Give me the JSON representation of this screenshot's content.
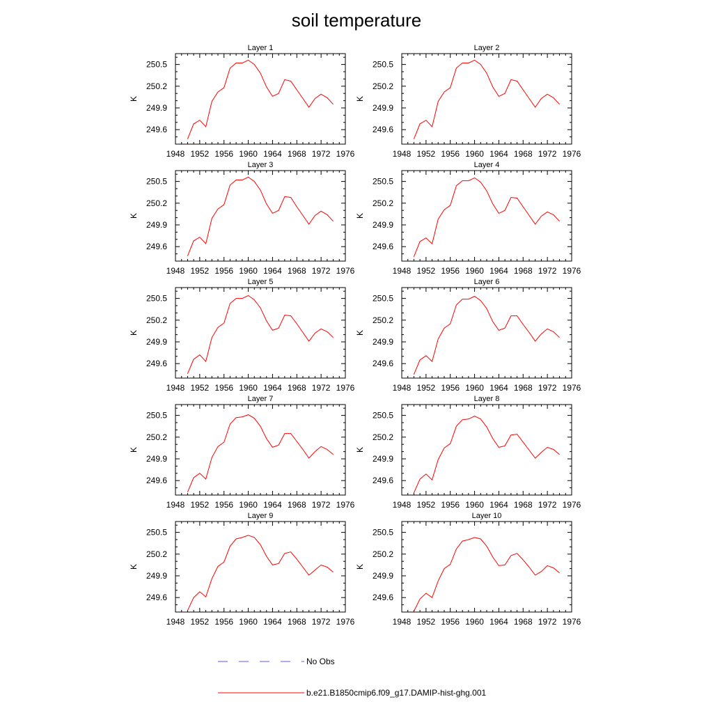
{
  "title": "soil temperature",
  "legend": {
    "items": [
      {
        "label": "No Obs",
        "color": "#5a5aff",
        "style": "dashed"
      },
      {
        "label": "b.e21.B1850cmip6.f09_g17.DAMIP-hist-ghg.001",
        "color": "#ff0000",
        "style": "solid"
      }
    ]
  },
  "chart_data": {
    "type": "line",
    "ylabel": "K",
    "xlim": [
      1948,
      1976
    ],
    "ylim": [
      249.4,
      250.65
    ],
    "xticks": [
      1948,
      1952,
      1956,
      1960,
      1964,
      1968,
      1972,
      1976
    ],
    "yticks": [
      249.6,
      249.9,
      250.2,
      250.5
    ],
    "ytick_labels": [
      "249.6",
      "249.9",
      "250.2",
      "250.5"
    ],
    "x": [
      1950,
      1951,
      1952,
      1953,
      1954,
      1955,
      1956,
      1957,
      1958,
      1959,
      1960,
      1961,
      1962,
      1963,
      1964,
      1965,
      1966,
      1967,
      1968,
      1969,
      1970,
      1971,
      1972,
      1973,
      1974
    ],
    "panels": [
      {
        "title": "Layer 1",
        "values": [
          249.47,
          249.68,
          249.73,
          249.64,
          249.99,
          250.12,
          250.18,
          250.45,
          250.52,
          250.52,
          250.56,
          250.5,
          250.38,
          250.19,
          250.06,
          250.1,
          250.29,
          250.27,
          250.15,
          250.03,
          249.91,
          250.03,
          250.09,
          250.04,
          249.95
        ]
      },
      {
        "title": "Layer 2",
        "values": [
          249.47,
          249.68,
          249.73,
          249.64,
          249.99,
          250.12,
          250.18,
          250.45,
          250.52,
          250.52,
          250.56,
          250.5,
          250.38,
          250.19,
          250.06,
          250.1,
          250.29,
          250.27,
          250.15,
          250.03,
          249.91,
          250.03,
          250.09,
          250.04,
          249.95
        ]
      },
      {
        "title": "Layer 3",
        "values": [
          249.47,
          249.68,
          249.73,
          249.64,
          249.99,
          250.12,
          250.18,
          250.45,
          250.52,
          250.52,
          250.56,
          250.5,
          250.38,
          250.19,
          250.06,
          250.1,
          250.29,
          250.28,
          250.15,
          250.03,
          249.91,
          250.03,
          250.09,
          250.04,
          249.95
        ]
      },
      {
        "title": "Layer 4",
        "values": [
          249.46,
          249.67,
          249.72,
          249.64,
          249.98,
          250.11,
          250.17,
          250.44,
          250.51,
          250.51,
          250.55,
          250.49,
          250.37,
          250.19,
          250.06,
          250.1,
          250.28,
          250.27,
          250.15,
          250.03,
          249.91,
          250.02,
          250.08,
          250.04,
          249.95
        ]
      },
      {
        "title": "Layer 5",
        "values": [
          249.46,
          249.66,
          249.72,
          249.63,
          249.96,
          250.1,
          250.16,
          250.43,
          250.5,
          250.5,
          250.54,
          250.48,
          250.37,
          250.19,
          250.06,
          250.09,
          250.27,
          250.26,
          250.15,
          250.03,
          249.91,
          250.02,
          250.08,
          250.04,
          249.96
        ]
      },
      {
        "title": "Layer 6",
        "values": [
          249.45,
          249.65,
          249.71,
          249.63,
          249.94,
          250.09,
          250.15,
          250.41,
          250.49,
          250.49,
          250.53,
          250.47,
          250.36,
          250.18,
          250.06,
          250.09,
          250.26,
          250.26,
          250.14,
          250.03,
          249.91,
          250.01,
          250.08,
          250.04,
          249.96
        ]
      },
      {
        "title": "Layer 7",
        "values": [
          249.44,
          249.64,
          249.7,
          249.62,
          249.92,
          250.07,
          250.13,
          250.38,
          250.47,
          250.48,
          250.51,
          250.46,
          250.35,
          250.18,
          250.06,
          250.09,
          250.25,
          250.25,
          250.14,
          250.03,
          249.91,
          250.0,
          250.07,
          250.03,
          249.96
        ]
      },
      {
        "title": "Layer 8",
        "values": [
          249.43,
          249.62,
          249.69,
          249.61,
          249.89,
          250.05,
          250.11,
          250.35,
          250.44,
          250.45,
          250.49,
          250.45,
          250.34,
          250.18,
          250.06,
          250.08,
          250.23,
          250.24,
          250.13,
          250.02,
          249.91,
          249.99,
          250.06,
          250.03,
          249.96
        ]
      },
      {
        "title": "Layer 9",
        "values": [
          249.42,
          249.6,
          249.68,
          249.61,
          249.86,
          250.03,
          250.09,
          250.31,
          250.41,
          250.43,
          250.46,
          250.43,
          250.33,
          250.17,
          250.05,
          250.07,
          250.21,
          250.23,
          250.13,
          250.02,
          249.91,
          249.98,
          250.05,
          250.02,
          249.95
        ]
      },
      {
        "title": "Layer 10",
        "values": [
          249.41,
          249.58,
          249.66,
          249.6,
          249.83,
          250.0,
          250.06,
          250.27,
          250.38,
          250.4,
          250.43,
          250.41,
          250.31,
          250.16,
          250.04,
          250.05,
          250.18,
          250.21,
          250.12,
          250.02,
          249.91,
          249.96,
          250.04,
          250.01,
          249.94
        ]
      }
    ]
  }
}
